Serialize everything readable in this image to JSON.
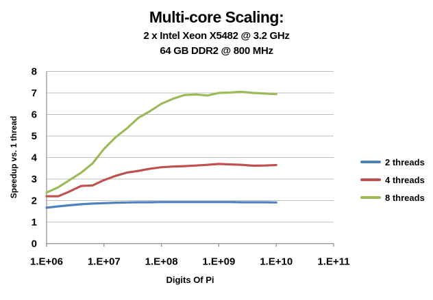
{
  "chart_data": {
    "type": "line",
    "title": "Multi-core Scaling:",
    "subtitle1": "2 x Intel Xeon X5482 @ 3.2 GHz",
    "subtitle2": "64 GB DDR2 @ 800 MHz",
    "xlabel": "Digits Of Pi",
    "ylabel": "Speedup vs. 1 thread",
    "x_scale": "log10",
    "x_range": [
      1000000,
      100000000000
    ],
    "x_tick_labels": [
      "1.E+06",
      "1.E+07",
      "1.E+08",
      "1.E+09",
      "1.E+10",
      "1.E+11"
    ],
    "ylim": [
      0,
      8
    ],
    "y_ticks": [
      0,
      1,
      2,
      3,
      4,
      5,
      6,
      7,
      8
    ],
    "grid": "horizontal",
    "legend_position": "right",
    "x": [
      1000000,
      1600000,
      2500000,
      4000000,
      6300000,
      10000000,
      16000000,
      25000000,
      40000000,
      63000000,
      100000000,
      160000000,
      250000000,
      400000000,
      630000000,
      1000000000,
      1600000000,
      2500000000,
      4000000000,
      6300000000,
      10000000000
    ],
    "series": [
      {
        "name": "2 threads",
        "color": "#4F81BD",
        "values": [
          1.67,
          1.73,
          1.78,
          1.83,
          1.86,
          1.88,
          1.9,
          1.91,
          1.92,
          1.92,
          1.93,
          1.93,
          1.93,
          1.93,
          1.93,
          1.93,
          1.93,
          1.92,
          1.92,
          1.92,
          1.91
        ]
      },
      {
        "name": "4 threads",
        "color": "#C0504D",
        "values": [
          2.2,
          2.2,
          2.42,
          2.68,
          2.7,
          2.95,
          3.15,
          3.3,
          3.38,
          3.48,
          3.55,
          3.58,
          3.6,
          3.63,
          3.66,
          3.7,
          3.68,
          3.66,
          3.62,
          3.63,
          3.65
        ]
      },
      {
        "name": "8 threads",
        "color": "#9BBB59",
        "values": [
          2.37,
          2.62,
          2.95,
          3.3,
          3.72,
          4.4,
          4.95,
          5.35,
          5.85,
          6.15,
          6.5,
          6.73,
          6.9,
          6.93,
          6.88,
          7.0,
          7.02,
          7.05,
          7.0,
          6.97,
          6.95
        ]
      }
    ]
  },
  "colors": {
    "background": "#FFFFFF",
    "gridline": "#BDBDBD",
    "axis": "#8C8C8C",
    "text": "#000000"
  }
}
